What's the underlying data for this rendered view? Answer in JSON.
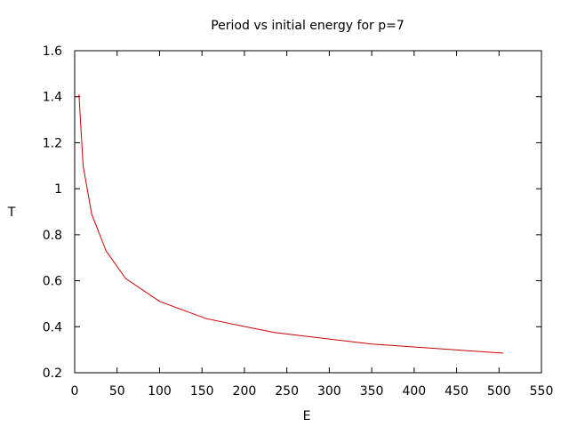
{
  "chart_data": {
    "type": "line",
    "title": "Period vs initial energy for p=7",
    "xlabel": "E",
    "ylabel": "T",
    "xlim": [
      0,
      550
    ],
    "ylim": [
      0.2,
      1.6
    ],
    "x_ticks": [
      0,
      50,
      100,
      150,
      200,
      250,
      300,
      350,
      400,
      450,
      500,
      550
    ],
    "y_ticks": [
      0.2,
      0.4,
      0.6,
      0.8,
      1.0,
      1.2,
      1.4,
      1.6
    ],
    "x_tick_labels": [
      "0",
      "50",
      "100",
      "150",
      "200",
      "250",
      "300",
      "350",
      "400",
      "450",
      "500",
      "550"
    ],
    "y_tick_labels": [
      "0.2",
      "0.4",
      "0.6",
      "0.8",
      "1",
      "1.2",
      "1.4",
      "1.6"
    ],
    "grid": false,
    "legend": "none",
    "series": [
      {
        "color": "#cc0000",
        "x": [
          5,
          10,
          20,
          37,
          60,
          100,
          155,
          235,
          350,
          505
        ],
        "y": [
          1.41,
          1.1,
          0.89,
          0.73,
          0.61,
          0.51,
          0.435,
          0.375,
          0.325,
          0.285
        ]
      }
    ]
  }
}
